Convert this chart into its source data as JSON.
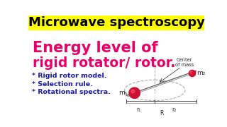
{
  "bg_color": "#ffffff",
  "header_bg": "#ffff00",
  "header_text": "Microwave spectroscopy",
  "header_color": "#000000",
  "header_fontsize": 13,
  "title_line1": "Energy level of",
  "title_line2": "rigid rotator/ rotor.",
  "title_color": "#e8006a",
  "title_fontsize1": 15,
  "title_fontsize2": 13.5,
  "bullets": [
    "* Rigid rotor model.",
    "* Selection rule.",
    "* Rotational spectra."
  ],
  "bullet_color": "#1a1aaa",
  "bullet_fontsize": 6.8,
  "m1_color": "#cc1133",
  "m2_color": "#cc1133",
  "label_m1": "m₁",
  "label_m2": "m₂",
  "label_r1": "r₁",
  "label_r2": "r₂",
  "label_R": "R",
  "label_com": "Center\nof mass",
  "rod_color": "#999999",
  "ellipse_color": "#aaaaaa",
  "arrow_color": "#cc1133",
  "text_color": "#222222"
}
